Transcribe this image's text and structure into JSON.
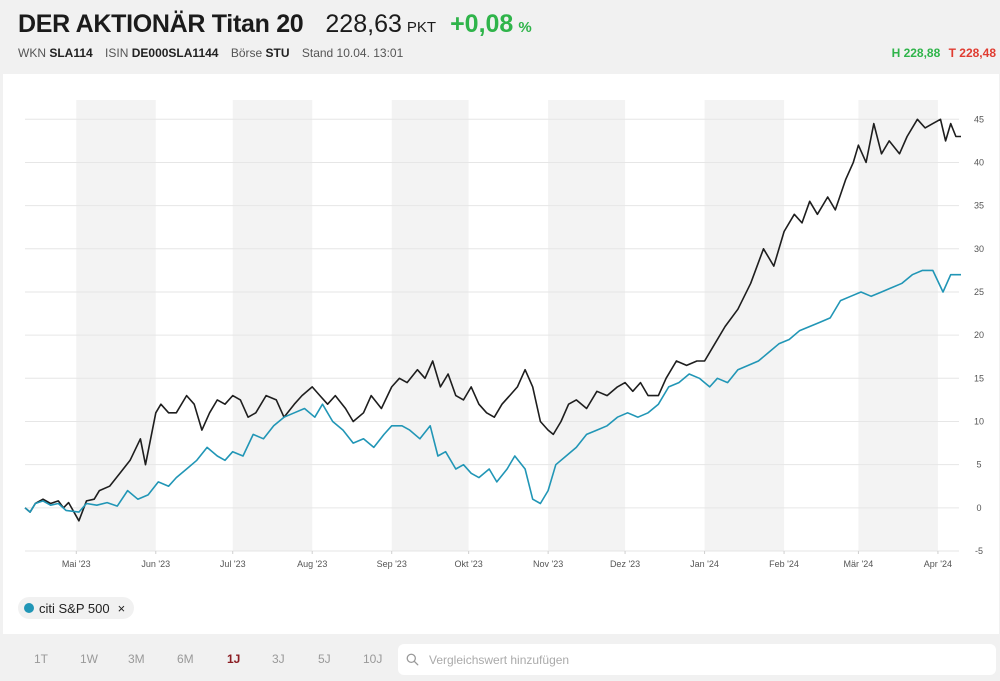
{
  "header": {
    "title": "DER AKTIONÄR Titan 20",
    "price": "228,63",
    "price_unit": "PKT",
    "change": "+0,08",
    "change_unit": "%",
    "wkn_label": "WKN",
    "wkn": "SLA114",
    "isin_label": "ISIN",
    "isin": "DE000SLA1144",
    "exchange_label": "Börse",
    "exchange": "STU",
    "stand": "Stand 10.04. 13:01",
    "high": "H 228,88",
    "low": "T 228,48",
    "colors": {
      "up": "#2fb44a",
      "down": "#e03c31"
    }
  },
  "legend": {
    "label": "citi S&P 500",
    "remove": "×",
    "color": "#2196b6"
  },
  "ranges": {
    "items": [
      "1T",
      "1W",
      "3M",
      "6M",
      "1J",
      "3J",
      "5J",
      "10J"
    ],
    "active": "1J"
  },
  "search": {
    "placeholder": "Vergleichswert hinzufügen",
    "value": "",
    "icon": "search-icon"
  },
  "chart_data": {
    "type": "line",
    "ylim": [
      -5,
      47
    ],
    "yticks": [
      -5,
      0,
      5,
      10,
      15,
      20,
      25,
      30,
      35,
      40,
      45
    ],
    "x_range": [
      "2023-04-11",
      "2024-04-10"
    ],
    "xticks": [
      {
        "date": "2023-05-01",
        "label": "Mai '23"
      },
      {
        "date": "2023-06-01",
        "label": "Jun '23"
      },
      {
        "date": "2023-07-01",
        "label": "Jul '23"
      },
      {
        "date": "2023-08-01",
        "label": "Aug '23"
      },
      {
        "date": "2023-09-01",
        "label": "Sep '23"
      },
      {
        "date": "2023-10-01",
        "label": "Okt '23"
      },
      {
        "date": "2023-11-01",
        "label": "Nov '23"
      },
      {
        "date": "2023-12-01",
        "label": "Dez '23"
      },
      {
        "date": "2024-01-01",
        "label": "Jan '24"
      },
      {
        "date": "2024-02-01",
        "label": "Feb '24"
      },
      {
        "date": "2024-03-01",
        "label": "Mär '24"
      },
      {
        "date": "2024-04-01",
        "label": "Apr '24"
      }
    ],
    "grid": true,
    "series": [
      {
        "color": "#1e1e1e",
        "points": [
          [
            "2023-04-11",
            0
          ],
          [
            "2023-04-13",
            -0.5
          ],
          [
            "2023-04-15",
            0.5
          ],
          [
            "2023-04-18",
            1
          ],
          [
            "2023-04-21",
            0.5
          ],
          [
            "2023-04-24",
            0.8
          ],
          [
            "2023-04-26",
            0
          ],
          [
            "2023-04-28",
            0.6
          ],
          [
            "2023-05-02",
            -1.5
          ],
          [
            "2023-05-05",
            0.8
          ],
          [
            "2023-05-08",
            1
          ],
          [
            "2023-05-10",
            2
          ],
          [
            "2023-05-14",
            2.5
          ],
          [
            "2023-05-18",
            4
          ],
          [
            "2023-05-22",
            5.5
          ],
          [
            "2023-05-26",
            8
          ],
          [
            "2023-05-28",
            5
          ],
          [
            "2023-06-01",
            11
          ],
          [
            "2023-06-03",
            12
          ],
          [
            "2023-06-06",
            11
          ],
          [
            "2023-06-09",
            11
          ],
          [
            "2023-06-13",
            13
          ],
          [
            "2023-06-16",
            12
          ],
          [
            "2023-06-19",
            9
          ],
          [
            "2023-06-22",
            11
          ],
          [
            "2023-06-25",
            12.5
          ],
          [
            "2023-06-28",
            12
          ],
          [
            "2023-07-01",
            13
          ],
          [
            "2023-07-04",
            12.5
          ],
          [
            "2023-07-07",
            10.5
          ],
          [
            "2023-07-10",
            11
          ],
          [
            "2023-07-14",
            13
          ],
          [
            "2023-07-18",
            12.5
          ],
          [
            "2023-07-21",
            10.5
          ],
          [
            "2023-07-25",
            12
          ],
          [
            "2023-07-28",
            13
          ],
          [
            "2023-08-01",
            14
          ],
          [
            "2023-08-04",
            13
          ],
          [
            "2023-08-07",
            12
          ],
          [
            "2023-08-10",
            13
          ],
          [
            "2023-08-14",
            11.5
          ],
          [
            "2023-08-17",
            10
          ],
          [
            "2023-08-21",
            11
          ],
          [
            "2023-08-24",
            13
          ],
          [
            "2023-08-28",
            11.5
          ],
          [
            "2023-09-01",
            14
          ],
          [
            "2023-09-04",
            15
          ],
          [
            "2023-09-07",
            14.5
          ],
          [
            "2023-09-11",
            16
          ],
          [
            "2023-09-14",
            15
          ],
          [
            "2023-09-17",
            17
          ],
          [
            "2023-09-20",
            14
          ],
          [
            "2023-09-23",
            15.5
          ],
          [
            "2023-09-26",
            13
          ],
          [
            "2023-09-29",
            12.5
          ],
          [
            "2023-10-02",
            14
          ],
          [
            "2023-10-05",
            12
          ],
          [
            "2023-10-08",
            11
          ],
          [
            "2023-10-11",
            10.5
          ],
          [
            "2023-10-14",
            12
          ],
          [
            "2023-10-17",
            13
          ],
          [
            "2023-10-20",
            14
          ],
          [
            "2023-10-23",
            16
          ],
          [
            "2023-10-26",
            14
          ],
          [
            "2023-10-29",
            10
          ],
          [
            "2023-11-01",
            9
          ],
          [
            "2023-11-03",
            8.5
          ],
          [
            "2023-11-06",
            10
          ],
          [
            "2023-11-09",
            12
          ],
          [
            "2023-11-12",
            12.5
          ],
          [
            "2023-11-16",
            11.5
          ],
          [
            "2023-11-20",
            13.5
          ],
          [
            "2023-11-24",
            13
          ],
          [
            "2023-11-28",
            14
          ],
          [
            "2023-12-01",
            14.5
          ],
          [
            "2023-12-04",
            13.5
          ],
          [
            "2023-12-07",
            14.5
          ],
          [
            "2023-12-10",
            13
          ],
          [
            "2023-12-14",
            13
          ],
          [
            "2023-12-17",
            15
          ],
          [
            "2023-12-21",
            17
          ],
          [
            "2023-12-25",
            16.5
          ],
          [
            "2023-12-29",
            17
          ],
          [
            "2024-01-01",
            17
          ],
          [
            "2024-01-05",
            19
          ],
          [
            "2024-01-09",
            21
          ],
          [
            "2024-01-14",
            23
          ],
          [
            "2024-01-19",
            26
          ],
          [
            "2024-01-24",
            30
          ],
          [
            "2024-01-28",
            28
          ],
          [
            "2024-02-01",
            32
          ],
          [
            "2024-02-05",
            34
          ],
          [
            "2024-02-08",
            33
          ],
          [
            "2024-02-11",
            35.5
          ],
          [
            "2024-02-14",
            34
          ],
          [
            "2024-02-18",
            36
          ],
          [
            "2024-02-21",
            34.5
          ],
          [
            "2024-02-25",
            38
          ],
          [
            "2024-02-28",
            40
          ],
          [
            "2024-03-01",
            42
          ],
          [
            "2024-03-04",
            40
          ],
          [
            "2024-03-07",
            44.5
          ],
          [
            "2024-03-10",
            41
          ],
          [
            "2024-03-13",
            42.5
          ],
          [
            "2024-03-17",
            41
          ],
          [
            "2024-03-20",
            43
          ],
          [
            "2024-03-24",
            45
          ],
          [
            "2024-03-27",
            44
          ],
          [
            "2024-03-30",
            44.5
          ],
          [
            "2024-04-02",
            45
          ],
          [
            "2024-04-04",
            42.5
          ],
          [
            "2024-04-06",
            44.5
          ],
          [
            "2024-04-08",
            43
          ],
          [
            "2024-04-10",
            43
          ]
        ]
      },
      {
        "name": "citi S&P 500",
        "color": "#2196b6",
        "points": [
          [
            "2023-04-11",
            0
          ],
          [
            "2023-04-13",
            -0.5
          ],
          [
            "2023-04-15",
            0.5
          ],
          [
            "2023-04-18",
            0.8
          ],
          [
            "2023-04-21",
            0.3
          ],
          [
            "2023-04-24",
            0.5
          ],
          [
            "2023-04-27",
            -0.3
          ],
          [
            "2023-05-02",
            -0.5
          ],
          [
            "2023-05-05",
            0.5
          ],
          [
            "2023-05-09",
            0.3
          ],
          [
            "2023-05-13",
            0.6
          ],
          [
            "2023-05-17",
            0.2
          ],
          [
            "2023-05-21",
            2
          ],
          [
            "2023-05-25",
            1
          ],
          [
            "2023-05-29",
            1.5
          ],
          [
            "2023-06-02",
            3
          ],
          [
            "2023-06-06",
            2.5
          ],
          [
            "2023-06-09",
            3.5
          ],
          [
            "2023-06-13",
            4.5
          ],
          [
            "2023-06-17",
            5.5
          ],
          [
            "2023-06-21",
            7
          ],
          [
            "2023-06-25",
            6
          ],
          [
            "2023-06-28",
            5.5
          ],
          [
            "2023-07-01",
            6.5
          ],
          [
            "2023-07-05",
            6
          ],
          [
            "2023-07-09",
            8.5
          ],
          [
            "2023-07-13",
            8
          ],
          [
            "2023-07-17",
            9.5
          ],
          [
            "2023-07-21",
            10.5
          ],
          [
            "2023-07-25",
            11
          ],
          [
            "2023-07-29",
            11.5
          ],
          [
            "2023-08-02",
            10.5
          ],
          [
            "2023-08-05",
            12
          ],
          [
            "2023-08-09",
            10
          ],
          [
            "2023-08-13",
            9
          ],
          [
            "2023-08-17",
            7.5
          ],
          [
            "2023-08-21",
            8
          ],
          [
            "2023-08-25",
            7
          ],
          [
            "2023-08-29",
            8.5
          ],
          [
            "2023-09-01",
            9.5
          ],
          [
            "2023-09-05",
            9.5
          ],
          [
            "2023-09-08",
            9
          ],
          [
            "2023-09-12",
            8
          ],
          [
            "2023-09-16",
            9.5
          ],
          [
            "2023-09-19",
            6
          ],
          [
            "2023-09-22",
            6.5
          ],
          [
            "2023-09-26",
            4.5
          ],
          [
            "2023-09-29",
            5
          ],
          [
            "2023-10-02",
            4
          ],
          [
            "2023-10-05",
            3.5
          ],
          [
            "2023-10-09",
            4.5
          ],
          [
            "2023-10-12",
            3
          ],
          [
            "2023-10-16",
            4.5
          ],
          [
            "2023-10-19",
            6
          ],
          [
            "2023-10-23",
            4.5
          ],
          [
            "2023-10-26",
            1
          ],
          [
            "2023-10-29",
            0.5
          ],
          [
            "2023-11-01",
            2
          ],
          [
            "2023-11-04",
            5
          ],
          [
            "2023-11-08",
            6
          ],
          [
            "2023-11-12",
            7
          ],
          [
            "2023-11-16",
            8.5
          ],
          [
            "2023-11-20",
            9
          ],
          [
            "2023-11-24",
            9.5
          ],
          [
            "2023-11-28",
            10.5
          ],
          [
            "2023-12-02",
            11
          ],
          [
            "2023-12-06",
            10.5
          ],
          [
            "2023-12-10",
            11
          ],
          [
            "2023-12-14",
            12
          ],
          [
            "2023-12-18",
            14
          ],
          [
            "2023-12-22",
            14.5
          ],
          [
            "2023-12-26",
            15.5
          ],
          [
            "2023-12-30",
            15
          ],
          [
            "2024-01-03",
            14
          ],
          [
            "2024-01-06",
            15
          ],
          [
            "2024-01-10",
            14.5
          ],
          [
            "2024-01-14",
            16
          ],
          [
            "2024-01-18",
            16.5
          ],
          [
            "2024-01-22",
            17
          ],
          [
            "2024-01-26",
            18
          ],
          [
            "2024-01-30",
            19
          ],
          [
            "2024-02-03",
            19.5
          ],
          [
            "2024-02-07",
            20.5
          ],
          [
            "2024-02-11",
            21
          ],
          [
            "2024-02-15",
            21.5
          ],
          [
            "2024-02-19",
            22
          ],
          [
            "2024-02-23",
            24
          ],
          [
            "2024-02-27",
            24.5
          ],
          [
            "2024-03-02",
            25
          ],
          [
            "2024-03-06",
            24.5
          ],
          [
            "2024-03-10",
            25
          ],
          [
            "2024-03-14",
            25.5
          ],
          [
            "2024-03-18",
            26
          ],
          [
            "2024-03-22",
            27
          ],
          [
            "2024-03-26",
            27.5
          ],
          [
            "2024-03-30",
            27.5
          ],
          [
            "2024-04-03",
            25
          ],
          [
            "2024-04-06",
            27
          ],
          [
            "2024-04-10",
            27
          ]
        ]
      }
    ]
  }
}
